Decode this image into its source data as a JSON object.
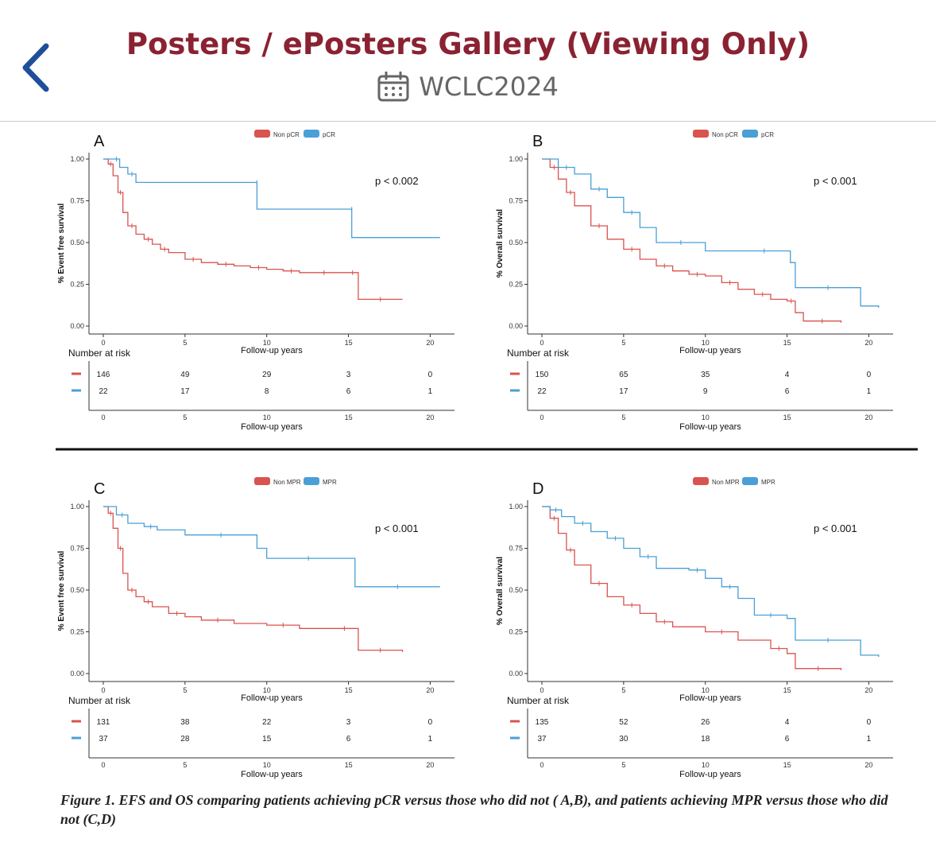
{
  "header": {
    "title": "Posters / ePosters Gallery (Viewing Only)",
    "event": "WCLC2024",
    "back_icon": "chevron-left-icon",
    "calendar_icon": "calendar-icon",
    "title_color": "#8a2232",
    "back_color": "#1f4e9a"
  },
  "figure": {
    "caption": "Figure 1. EFS and OS comparing patients achieving pCR versus those who did not ( A,B), and patients achieving MPR versus those who did not (C,D)"
  },
  "chart_data": [
    {
      "type": "line",
      "panel": "A",
      "legend": [
        "Non pCR",
        "pCR"
      ],
      "ylabel": "% Event free survival",
      "xlabel": "Follow-up years",
      "pvalue": "p < 0.002",
      "x_ticks": [
        "0",
        "5",
        "10",
        "15",
        "20"
      ],
      "y_ticks": [
        "0.00",
        "0.25",
        "0.50",
        "0.75",
        "1.00"
      ],
      "xlim": [
        0,
        21
      ],
      "ylim": [
        0,
        1
      ],
      "series": [
        {
          "name": "Non pCR",
          "color": "#d9534f",
          "x": [
            0,
            0.3,
            0.6,
            0.9,
            1.2,
            1.5,
            2,
            2.5,
            3,
            3.5,
            4,
            5,
            6,
            7,
            8,
            9,
            10,
            11,
            12,
            13,
            14,
            15,
            15.5,
            15.6,
            18.3
          ],
          "y": [
            1,
            0.97,
            0.9,
            0.8,
            0.68,
            0.6,
            0.55,
            0.52,
            0.49,
            0.46,
            0.44,
            0.4,
            0.38,
            0.37,
            0.36,
            0.35,
            0.34,
            0.33,
            0.32,
            0.32,
            0.32,
            0.32,
            0.32,
            0.16,
            0.16
          ]
        },
        {
          "name": "pCR",
          "color": "#4a9fd6",
          "x": [
            0,
            0.6,
            1,
            1.5,
            2,
            9.4,
            9.4,
            15.2,
            15.2,
            20.6
          ],
          "y": [
            1,
            1,
            0.95,
            0.91,
            0.86,
            0.86,
            0.7,
            0.7,
            0.53,
            0.53
          ]
        }
      ],
      "risk_table": {
        "title": "Number at risk",
        "x_ticks": [
          "0",
          "5",
          "10",
          "15",
          "20"
        ],
        "rows": [
          {
            "name": "Non pCR",
            "values": [
              "146",
              "49",
              "29",
              "3",
              "0"
            ]
          },
          {
            "name": "pCR",
            "values": [
              "22",
              "17",
              "8",
              "6",
              "1"
            ]
          }
        ],
        "xlabel": "Follow-up years"
      }
    },
    {
      "type": "line",
      "panel": "B",
      "legend": [
        "Non pCR",
        "pCR"
      ],
      "ylabel": "% Overall survival",
      "xlabel": "Follow-up years",
      "pvalue": "p < 0.001",
      "x_ticks": [
        "0",
        "5",
        "10",
        "15",
        "20"
      ],
      "y_ticks": [
        "0.00",
        "0.25",
        "0.50",
        "0.75",
        "1.00"
      ],
      "xlim": [
        0,
        21
      ],
      "ylim": [
        0,
        1
      ],
      "series": [
        {
          "name": "Non pCR",
          "color": "#d9534f",
          "x": [
            0,
            0.5,
            1,
            1.5,
            2,
            3,
            4,
            5,
            6,
            7,
            8,
            9,
            10,
            11,
            12,
            13,
            14,
            15,
            15.5,
            16,
            18.3
          ],
          "y": [
            1,
            0.95,
            0.88,
            0.8,
            0.72,
            0.6,
            0.52,
            0.46,
            0.4,
            0.36,
            0.33,
            0.31,
            0.3,
            0.26,
            0.22,
            0.19,
            0.16,
            0.15,
            0.08,
            0.03,
            0.02
          ]
        },
        {
          "name": "pCR",
          "color": "#4a9fd6",
          "x": [
            0,
            1,
            2,
            3,
            4,
            5,
            6,
            7,
            10,
            12,
            15.2,
            15.5,
            19.5,
            20.6
          ],
          "y": [
            1,
            0.95,
            0.91,
            0.82,
            0.77,
            0.68,
            0.59,
            0.5,
            0.45,
            0.45,
            0.38,
            0.23,
            0.12,
            0.11
          ]
        }
      ],
      "risk_table": {
        "title": "Number at risk",
        "x_ticks": [
          "0",
          "5",
          "10",
          "15",
          "20"
        ],
        "rows": [
          {
            "name": "Non pCR",
            "values": [
              "150",
              "65",
              "35",
              "4",
              "0"
            ]
          },
          {
            "name": "pCR",
            "values": [
              "22",
              "17",
              "9",
              "6",
              "1"
            ]
          }
        ],
        "xlabel": "Follow-up years"
      }
    },
    {
      "type": "line",
      "panel": "C",
      "legend": [
        "Non MPR",
        "MPR"
      ],
      "ylabel": "% Event free survival",
      "xlabel": "Follow-up years",
      "pvalue": "p < 0.001",
      "x_ticks": [
        "0",
        "5",
        "10",
        "15",
        "20"
      ],
      "y_ticks": [
        "0.00",
        "0.25",
        "0.50",
        "0.75",
        "1.00"
      ],
      "xlim": [
        0,
        21
      ],
      "ylim": [
        0,
        1
      ],
      "series": [
        {
          "name": "Non MPR",
          "color": "#d9534f",
          "x": [
            0,
            0.3,
            0.6,
            0.9,
            1.2,
            1.5,
            2,
            2.5,
            3,
            4,
            5,
            6,
            8,
            10,
            12,
            14,
            15.5,
            15.6,
            18.3
          ],
          "y": [
            1,
            0.96,
            0.87,
            0.75,
            0.6,
            0.5,
            0.46,
            0.43,
            0.4,
            0.36,
            0.34,
            0.32,
            0.3,
            0.29,
            0.27,
            0.27,
            0.27,
            0.14,
            0.13
          ]
        },
        {
          "name": "MPR",
          "color": "#4a9fd6",
          "x": [
            0,
            0.8,
            1.5,
            2.5,
            3.3,
            5,
            9.4,
            10,
            15.1,
            15.4,
            20.6
          ],
          "y": [
            1,
            0.95,
            0.9,
            0.88,
            0.86,
            0.83,
            0.75,
            0.69,
            0.69,
            0.52,
            0.52
          ]
        }
      ],
      "risk_table": {
        "title": "Number at risk",
        "x_ticks": [
          "0",
          "5",
          "10",
          "15",
          "20"
        ],
        "rows": [
          {
            "name": "Non MPR",
            "values": [
              "131",
              "38",
              "22",
              "3",
              "0"
            ]
          },
          {
            "name": "MPR",
            "values": [
              "37",
              "28",
              "15",
              "6",
              "1"
            ]
          }
        ],
        "xlabel": "Follow-up years"
      }
    },
    {
      "type": "line",
      "panel": "D",
      "legend": [
        "Non MPR",
        "MPR"
      ],
      "ylabel": "% Overall survival",
      "xlabel": "Follow-up years",
      "pvalue": "p < 0.001",
      "x_ticks": [
        "0",
        "5",
        "10",
        "15",
        "20"
      ],
      "y_ticks": [
        "0.00",
        "0.25",
        "0.50",
        "0.75",
        "1.00"
      ],
      "xlim": [
        0,
        21
      ],
      "ylim": [
        0,
        1
      ],
      "series": [
        {
          "name": "Non MPR",
          "color": "#d9534f",
          "x": [
            0,
            0.5,
            1,
            1.5,
            2,
            3,
            4,
            5,
            6,
            7,
            8,
            10,
            12,
            14,
            15,
            15.5,
            18.3
          ],
          "y": [
            1,
            0.93,
            0.84,
            0.74,
            0.65,
            0.54,
            0.46,
            0.41,
            0.36,
            0.31,
            0.28,
            0.25,
            0.2,
            0.15,
            0.12,
            0.03,
            0.02
          ]
        },
        {
          "name": "MPR",
          "color": "#4a9fd6",
          "x": [
            0,
            0.5,
            1.2,
            2,
            3,
            4,
            5,
            6,
            7,
            9,
            10,
            11,
            12,
            13,
            15,
            15.5,
            19.5,
            20.6
          ],
          "y": [
            1,
            0.98,
            0.94,
            0.9,
            0.85,
            0.81,
            0.75,
            0.7,
            0.63,
            0.62,
            0.57,
            0.52,
            0.45,
            0.35,
            0.33,
            0.2,
            0.11,
            0.1
          ]
        }
      ],
      "risk_table": {
        "title": "Number at risk",
        "x_ticks": [
          "0",
          "5",
          "10",
          "15",
          "20"
        ],
        "rows": [
          {
            "name": "Non MPR",
            "values": [
              "135",
              "52",
              "26",
              "4",
              "0"
            ]
          },
          {
            "name": "MPR",
            "values": [
              "37",
              "30",
              "18",
              "6",
              "1"
            ]
          }
        ],
        "xlabel": "Follow-up years"
      }
    }
  ]
}
